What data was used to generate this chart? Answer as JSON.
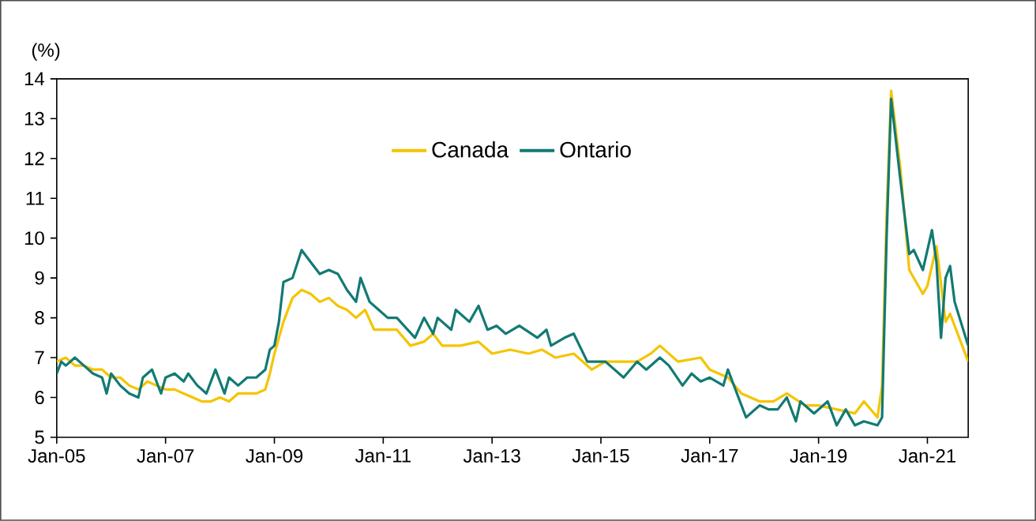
{
  "chart_data": {
    "type": "line",
    "ylabel": "(%)",
    "xlim": [
      "2005-01",
      "2021-10"
    ],
    "ylim": [
      5,
      14
    ],
    "xticks": [
      {
        "value": "2005-01",
        "label": "Jan-05"
      },
      {
        "value": "2007-01",
        "label": "Jan-07"
      },
      {
        "value": "2009-01",
        "label": "Jan-09"
      },
      {
        "value": "2011-01",
        "label": "Jan-11"
      },
      {
        "value": "2013-01",
        "label": "Jan-13"
      },
      {
        "value": "2015-01",
        "label": "Jan-15"
      },
      {
        "value": "2017-01",
        "label": "Jan-17"
      },
      {
        "value": "2019-01",
        "label": "Jan-19"
      },
      {
        "value": "2021-01",
        "label": "Jan-21"
      }
    ],
    "yticks": [
      5,
      6,
      7,
      8,
      9,
      10,
      11,
      12,
      13,
      14
    ],
    "grid": false,
    "legend": "top",
    "marker": "none",
    "line_style": "solid",
    "series": [
      {
        "name": "Canada",
        "color": "#f5c400",
        "x": [
          "2005-01",
          "2005-03",
          "2005-05",
          "2005-07",
          "2005-09",
          "2005-11",
          "2006-01",
          "2006-03",
          "2006-05",
          "2006-07",
          "2006-09",
          "2006-11",
          "2007-01",
          "2007-03",
          "2007-05",
          "2007-07",
          "2007-09",
          "2007-11",
          "2008-01",
          "2008-03",
          "2008-05",
          "2008-07",
          "2008-09",
          "2008-11",
          "2008-12",
          "2009-01",
          "2009-03",
          "2009-05",
          "2009-07",
          "2009-09",
          "2009-11",
          "2010-01",
          "2010-03",
          "2010-05",
          "2010-07",
          "2010-09",
          "2010-11",
          "2011-01",
          "2011-04",
          "2011-07",
          "2011-10",
          "2011-12",
          "2012-02",
          "2012-06",
          "2012-10",
          "2013-01",
          "2013-05",
          "2013-09",
          "2013-12",
          "2014-03",
          "2014-07",
          "2014-11",
          "2015-02",
          "2015-06",
          "2015-09",
          "2015-12",
          "2016-02",
          "2016-06",
          "2016-11",
          "2017-01",
          "2017-05",
          "2017-08",
          "2017-12",
          "2018-03",
          "2018-06",
          "2018-10",
          "2019-01",
          "2019-05",
          "2019-09",
          "2019-11",
          "2020-02",
          "2020-03",
          "2020-04",
          "2020-05",
          "2020-07",
          "2020-09",
          "2020-12",
          "2021-01",
          "2021-03",
          "2021-05",
          "2021-06",
          "2021-08",
          "2021-10"
        ],
        "values": [
          6.9,
          7.0,
          6.8,
          6.8,
          6.7,
          6.7,
          6.5,
          6.5,
          6.3,
          6.2,
          6.4,
          6.3,
          6.2,
          6.2,
          6.1,
          6.0,
          5.9,
          5.9,
          6.0,
          5.9,
          6.1,
          6.1,
          6.1,
          6.2,
          6.6,
          7.1,
          7.9,
          8.5,
          8.7,
          8.6,
          8.4,
          8.5,
          8.3,
          8.2,
          8.0,
          8.2,
          7.7,
          7.7,
          7.7,
          7.3,
          7.4,
          7.6,
          7.3,
          7.3,
          7.4,
          7.1,
          7.2,
          7.1,
          7.2,
          7.0,
          7.1,
          6.7,
          6.9,
          6.9,
          6.9,
          7.1,
          7.3,
          6.9,
          7.0,
          6.7,
          6.5,
          6.1,
          5.9,
          5.9,
          6.1,
          5.8,
          5.8,
          5.7,
          5.6,
          5.9,
          5.5,
          6.3,
          10.6,
          13.7,
          11.8,
          9.2,
          8.6,
          8.8,
          9.8,
          7.9,
          8.1,
          7.5,
          6.9
        ]
      },
      {
        "name": "Ontario",
        "color": "#127a74",
        "x": [
          "2005-01",
          "2005-02",
          "2005-03",
          "2005-05",
          "2005-07",
          "2005-09",
          "2005-11",
          "2005-12",
          "2006-01",
          "2006-03",
          "2006-05",
          "2006-07",
          "2006-08",
          "2006-10",
          "2006-12",
          "2007-01",
          "2007-03",
          "2007-05",
          "2007-06",
          "2007-08",
          "2007-10",
          "2007-12",
          "2008-02",
          "2008-03",
          "2008-05",
          "2008-07",
          "2008-09",
          "2008-11",
          "2008-12",
          "2009-01",
          "2009-02",
          "2009-03",
          "2009-05",
          "2009-07",
          "2009-09",
          "2009-11",
          "2010-01",
          "2010-03",
          "2010-05",
          "2010-07",
          "2010-08",
          "2010-10",
          "2010-12",
          "2011-02",
          "2011-04",
          "2011-08",
          "2011-10",
          "2011-12",
          "2012-01",
          "2012-04",
          "2012-05",
          "2012-08",
          "2012-10",
          "2012-12",
          "2013-02",
          "2013-04",
          "2013-07",
          "2013-11",
          "2014-01",
          "2014-02",
          "2014-05",
          "2014-07",
          "2014-10",
          "2015-02",
          "2015-06",
          "2015-09",
          "2015-11",
          "2016-02",
          "2016-04",
          "2016-07",
          "2016-09",
          "2016-11",
          "2017-01",
          "2017-04",
          "2017-05",
          "2017-09",
          "2017-12",
          "2018-02",
          "2018-04",
          "2018-06",
          "2018-08",
          "2018-09",
          "2018-12",
          "2019-03",
          "2019-05",
          "2019-07",
          "2019-09",
          "2019-11",
          "2020-02",
          "2020-03",
          "2020-04",
          "2020-05",
          "2020-07",
          "2020-09",
          "2020-10",
          "2020-12",
          "2021-02",
          "2021-03",
          "2021-04",
          "2021-05",
          "2021-06",
          "2021-07",
          "2021-10"
        ],
        "values": [
          6.6,
          6.9,
          6.8,
          7.0,
          6.8,
          6.6,
          6.5,
          6.1,
          6.6,
          6.3,
          6.1,
          6.0,
          6.5,
          6.7,
          6.1,
          6.5,
          6.6,
          6.4,
          6.6,
          6.3,
          6.1,
          6.7,
          6.1,
          6.5,
          6.3,
          6.5,
          6.5,
          6.7,
          7.2,
          7.3,
          7.9,
          8.9,
          9.0,
          9.7,
          9.4,
          9.1,
          9.2,
          9.1,
          8.7,
          8.4,
          9.0,
          8.4,
          8.2,
          8.0,
          8.0,
          7.5,
          8.0,
          7.6,
          8.0,
          7.7,
          8.2,
          7.9,
          8.3,
          7.7,
          7.8,
          7.6,
          7.8,
          7.5,
          7.7,
          7.3,
          7.5,
          7.6,
          6.9,
          6.9,
          6.5,
          6.9,
          6.7,
          7.0,
          6.8,
          6.3,
          6.6,
          6.4,
          6.5,
          6.3,
          6.7,
          5.5,
          5.8,
          5.7,
          5.7,
          6.0,
          5.4,
          5.9,
          5.6,
          5.9,
          5.3,
          5.7,
          5.3,
          5.4,
          5.3,
          5.5,
          10.0,
          13.5,
          11.5,
          9.6,
          9.7,
          9.2,
          10.2,
          9.4,
          7.5,
          9.0,
          9.3,
          8.4,
          7.3
        ]
      }
    ]
  }
}
